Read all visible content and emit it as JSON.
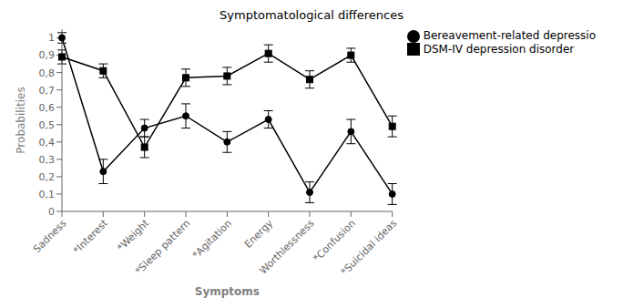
{
  "chart_data": {
    "type": "line",
    "title": "Symptomatological differences",
    "xlabel": "Symptoms",
    "ylabel": "Probabilities",
    "categories": [
      "Sadness",
      "*Interest",
      "*Weight",
      "*Sleep pattern",
      "*Agitation",
      "Energy",
      "Worthlessness",
      "*Confusion",
      "*Suicidal ideas"
    ],
    "series": [
      {
        "name": "Bereavement-related depressio",
        "color": "#000000",
        "marker": "circle",
        "values": [
          1.0,
          0.23,
          0.48,
          0.55,
          0.4,
          0.53,
          0.11,
          0.46,
          0.1
        ],
        "errors": [
          0.03,
          0.07,
          0.05,
          0.07,
          0.06,
          0.05,
          0.06,
          0.07,
          0.06
        ]
      },
      {
        "name": "DSM-IV depression disorder",
        "color": "#000000",
        "marker": "square",
        "values": [
          0.89,
          0.81,
          0.37,
          0.77,
          0.78,
          0.91,
          0.76,
          0.9,
          0.49
        ],
        "errors": [
          0.04,
          0.04,
          0.06,
          0.05,
          0.05,
          0.05,
          0.05,
          0.04,
          0.06
        ]
      }
    ],
    "ylim": [
      0,
      1.05
    ],
    "yticks": [
      0,
      {
        "value": 0.1,
        "label": "0,1"
      },
      {
        "value": 0.2,
        "label": "0,2"
      },
      {
        "value": 0.3,
        "label": "0,3"
      },
      {
        "value": 0.4,
        "label": "0,4"
      },
      {
        "value": 0.5,
        "label": "0,5"
      },
      {
        "value": 0.6,
        "label": "0,6"
      },
      {
        "value": 0.7,
        "label": "0,7"
      },
      {
        "value": 0.8,
        "label": "0,8"
      },
      {
        "value": 0.9,
        "label": "0,9"
      },
      1
    ],
    "grid": false,
    "legend": "right"
  }
}
